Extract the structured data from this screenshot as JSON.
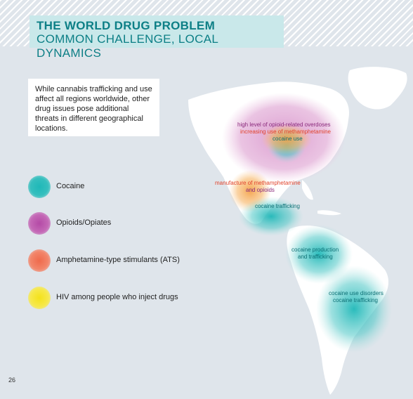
{
  "header": {
    "title_line1": "THE WORLD DRUG PROBLEM",
    "title_line2": "COMMON CHALLENGE, LOCAL DYNAMICS"
  },
  "intro_text": "While cannabis trafficking and use affect all regions worldwide, other drug issues pose additional threats in different geographical locations.",
  "legend": [
    {
      "label": "Cocaine",
      "color": "#1fb8b8"
    },
    {
      "label": "Opioids/Opiates",
      "color": "#b44aa6"
    },
    {
      "label": "Amphetamine-type stimulants (ATS)",
      "color": "#ef6a4c"
    },
    {
      "label": "HIV among people who inject drugs",
      "color": "#f4e21a"
    }
  ],
  "map_labels": {
    "na_opioid_overdoses": "high level of opioid-related overdoses",
    "na_meth_use": "increasing use of methamphetamine",
    "na_cocaine_use": "cocaine use",
    "mx_meth_manufacture": "manufacture of methamphetamine",
    "mx_opioids": "and opioids",
    "ca_cocaine_trafficking": "cocaine trafficking",
    "sa_production_1": "cocaine production",
    "sa_production_2": "and trafficking",
    "sa_disorders_1": "cocaine use disorders",
    "sa_disorders_2": "cocaine trafficking"
  },
  "colors": {
    "background": "#dfe5eb",
    "title": "#0d7f86",
    "title_box": "#c9e8ea",
    "land": "#ffffff"
  },
  "page_number": "26"
}
